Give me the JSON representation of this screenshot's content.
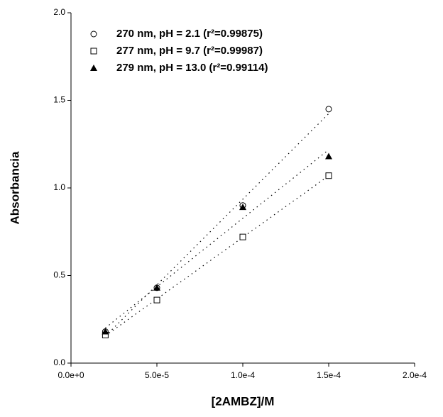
{
  "chart_data": {
    "type": "scatter",
    "x_label": "[2AMBZ]/M",
    "y_label": "Absorbancia",
    "xlim": [
      0,
      0.0002
    ],
    "ylim": [
      0,
      2
    ],
    "xticks": [
      {
        "value": 0,
        "label": "0.0e+0"
      },
      {
        "value": 5e-05,
        "label": "5.0e-5"
      },
      {
        "value": 0.0001,
        "label": "1.0e-4"
      },
      {
        "value": 0.00015,
        "label": "1.5e-4"
      },
      {
        "value": 0.0002,
        "label": "2.0e-4"
      }
    ],
    "yticks": [
      {
        "value": 0,
        "label": "0.0"
      },
      {
        "value": 0.5,
        "label": "0.5"
      },
      {
        "value": 1,
        "label": "1.0"
      },
      {
        "value": 1.5,
        "label": "1.5"
      },
      {
        "value": 2,
        "label": "2.0"
      }
    ],
    "fit_lines": true,
    "series": [
      {
        "name": "270 nm, pH = 2.1 (r²=0.99875)",
        "color": "#000000",
        "marker": "circle-open",
        "x": [
          2e-05,
          5e-05,
          0.0001,
          0.00015
        ],
        "values": [
          0.18,
          0.43,
          0.9,
          1.45
        ]
      },
      {
        "name": "277 nm, pH = 9.7 (r²=0.99987)",
        "color": "#000000",
        "marker": "square-open",
        "x": [
          2e-05,
          5e-05,
          0.0001,
          0.00015
        ],
        "values": [
          0.16,
          0.36,
          0.72,
          1.07
        ]
      },
      {
        "name": "279 nm, pH = 13.0 (r²=0.99114)",
        "color": "#000000",
        "marker": "triangle-filled",
        "x": [
          2e-05,
          5e-05,
          0.0001,
          0.00015
        ],
        "values": [
          0.18,
          0.43,
          0.89,
          1.18
        ]
      }
    ]
  }
}
